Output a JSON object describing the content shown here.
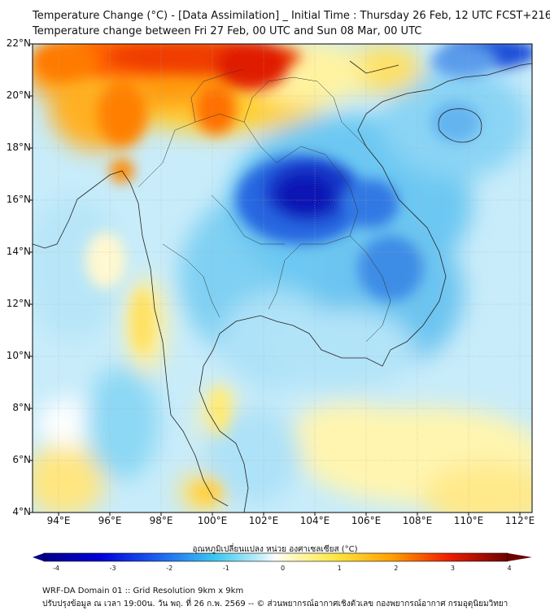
{
  "title_line1": "Temperature Change (°C) - [Data Assimilation] _ Initial Time : Thursday 26 Feb, 12 UTC FCST+216",
  "title_line2": "Temperature change between Fri 27 Feb, 00 UTC and Sun 08 Mar, 00 UTC",
  "lat_labels": [
    "22°N",
    "20°N",
    "18°N",
    "16°N",
    "14°N",
    "12°N",
    "10°N",
    "8°N",
    "6°N",
    "4°N"
  ],
  "lon_labels": [
    "94°E",
    "96°E",
    "98°E",
    "100°E",
    "102°E",
    "104°E",
    "106°E",
    "108°E",
    "110°E",
    "112°E"
  ],
  "colorbar": {
    "title": "อุณหภูมิเปลี่ยนแปลง หน่วย องศาเซลเซียส (°C)",
    "ticks": [
      "-4",
      "-3",
      "-2",
      "-1",
      "0",
      "1",
      "2",
      "3",
      "4"
    ],
    "range": [
      -4,
      4
    ]
  },
  "footer_line1": "WRF-DA Domain 01 :: Grid Resolution 9km x 9km",
  "footer_line2": "ปรับปรุงข้อมูล ณ เวลา 19:00น. วัน พฤ. ที่ 26 ก.พ. 2569 -- © ส่วนพยากรณ์อากาศเชิงตัวเลข กองพยากรณ์อากาศ กรมอุตุนิยมวิทยา",
  "colors": {
    "cold_extreme": "#00008b",
    "cold": "#1e3cdc",
    "cool": "#5ac8f5",
    "neutral": "#ffffff",
    "warm": "#ffe640",
    "hot": "#ff7800",
    "hot_extreme": "#6e0000",
    "land_sea_background": "#c8ecfa"
  }
}
